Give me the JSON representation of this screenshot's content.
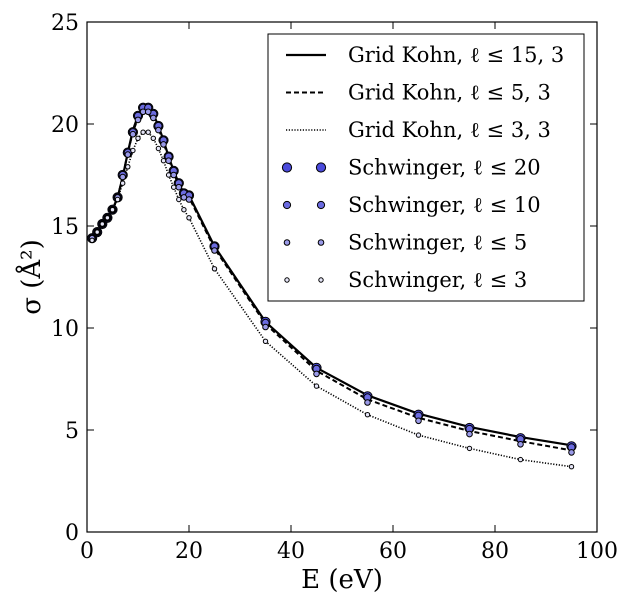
{
  "chart_data": {
    "type": "line",
    "xlabel": "E (eV)",
    "ylabel": "σ (Å²)",
    "xlim": [
      0,
      100
    ],
    "ylim": [
      0,
      25
    ],
    "xticks": [
      0,
      20,
      40,
      60,
      80,
      100
    ],
    "yticks": [
      0,
      5,
      10,
      15,
      20,
      25
    ],
    "grid": false,
    "legend_position": "top-right",
    "series": [
      {
        "name": "Grid Kohn, ℓ ≤ 15, 3",
        "style": "solid",
        "x": [
          1,
          2,
          3,
          4,
          5,
          6,
          7,
          8,
          9,
          10,
          11,
          12,
          13,
          14,
          15,
          16,
          17,
          18,
          19,
          20,
          25,
          35,
          45,
          55,
          65,
          75,
          85,
          95
        ],
        "y": [
          14.4,
          14.7,
          15.1,
          15.4,
          15.8,
          16.4,
          17.4,
          18.6,
          19.7,
          20.4,
          20.8,
          20.8,
          20.5,
          19.9,
          19.2,
          18.4,
          17.7,
          17.1,
          16.6,
          16.5,
          14.0,
          10.3,
          8.05,
          6.7,
          5.8,
          5.15,
          4.65,
          4.25
        ]
      },
      {
        "name": "Grid Kohn, ℓ ≤ 5, 3",
        "style": "dashed",
        "x": [
          1,
          2,
          3,
          4,
          5,
          6,
          7,
          8,
          9,
          10,
          11,
          12,
          13,
          14,
          15,
          16,
          17,
          18,
          19,
          20,
          25,
          35,
          45,
          55,
          65,
          75,
          85,
          95
        ],
        "y": [
          14.4,
          14.7,
          15.1,
          15.4,
          15.8,
          16.4,
          17.4,
          18.6,
          19.6,
          20.3,
          20.7,
          20.7,
          20.4,
          19.8,
          19.1,
          18.3,
          17.6,
          17.0,
          16.5,
          16.4,
          13.9,
          10.2,
          7.9,
          6.5,
          5.6,
          4.95,
          4.45,
          4.0
        ]
      },
      {
        "name": "Grid Kohn, ℓ ≤ 3, 3",
        "style": "dotted",
        "x": [
          1,
          2,
          3,
          4,
          5,
          6,
          7,
          8,
          9,
          10,
          11,
          12,
          13,
          14,
          15,
          16,
          17,
          18,
          19,
          20,
          25,
          35,
          45,
          55,
          65,
          75,
          85,
          95
        ],
        "y": [
          14.3,
          14.7,
          15.1,
          15.4,
          15.8,
          16.3,
          17.1,
          17.9,
          18.7,
          19.3,
          19.6,
          19.6,
          19.3,
          18.8,
          18.2,
          17.5,
          16.9,
          16.3,
          15.8,
          15.4,
          12.9,
          9.35,
          7.15,
          5.75,
          4.75,
          4.1,
          3.55,
          3.2
        ]
      },
      {
        "name": "Schwinger, ℓ ≤ 20",
        "style": "marker-large",
        "x": [
          1,
          2,
          3,
          4,
          5,
          6,
          7,
          8,
          9,
          10,
          11,
          12,
          13,
          14,
          15,
          16,
          17,
          18,
          19,
          20,
          25,
          35,
          45,
          55,
          65,
          75,
          85,
          95
        ],
        "y": [
          14.4,
          14.7,
          15.1,
          15.4,
          15.8,
          16.4,
          17.5,
          18.6,
          19.6,
          20.4,
          20.8,
          20.8,
          20.5,
          19.9,
          19.2,
          18.4,
          17.7,
          17.1,
          16.6,
          16.5,
          14.0,
          10.3,
          8.05,
          6.65,
          5.75,
          5.1,
          4.6,
          4.2
        ]
      },
      {
        "name": "Schwinger, ℓ ≤ 10",
        "style": "marker-medium",
        "x": [
          1,
          2,
          3,
          4,
          5,
          6,
          7,
          8,
          9,
          10,
          11,
          12,
          13,
          14,
          15,
          16,
          17,
          18,
          19,
          20,
          25,
          35,
          45,
          55,
          65,
          75,
          85,
          95
        ],
        "y": [
          14.4,
          14.7,
          15.1,
          15.4,
          15.8,
          16.4,
          17.5,
          18.6,
          19.6,
          20.4,
          20.8,
          20.8,
          20.5,
          19.9,
          19.2,
          18.4,
          17.7,
          17.1,
          16.6,
          16.5,
          14.0,
          10.25,
          8.0,
          6.6,
          5.7,
          5.05,
          4.55,
          4.15
        ]
      },
      {
        "name": "Schwinger, ℓ ≤ 5",
        "style": "marker-small",
        "x": [
          1,
          2,
          3,
          4,
          5,
          6,
          7,
          8,
          9,
          10,
          11,
          12,
          13,
          14,
          15,
          16,
          17,
          18,
          19,
          20,
          25,
          35,
          45,
          55,
          65,
          75,
          85,
          95
        ],
        "y": [
          14.4,
          14.7,
          15.1,
          15.4,
          15.8,
          16.4,
          17.4,
          18.5,
          19.5,
          20.2,
          20.6,
          20.6,
          20.3,
          19.7,
          19.0,
          18.2,
          17.5,
          16.9,
          16.4,
          16.3,
          13.8,
          10.05,
          7.75,
          6.35,
          5.45,
          4.8,
          4.3,
          3.9
        ]
      },
      {
        "name": "Schwinger, ℓ ≤ 3",
        "style": "marker-tiny",
        "x": [
          1,
          2,
          3,
          4,
          5,
          6,
          7,
          8,
          9,
          10,
          11,
          12,
          13,
          14,
          15,
          16,
          17,
          18,
          19,
          20,
          25,
          35,
          45,
          55,
          65,
          75,
          85,
          95
        ],
        "y": [
          14.3,
          14.7,
          15.1,
          15.4,
          15.8,
          16.3,
          17.1,
          17.9,
          18.7,
          19.3,
          19.6,
          19.6,
          19.3,
          18.8,
          18.2,
          17.5,
          16.9,
          16.3,
          15.8,
          15.4,
          12.9,
          9.35,
          7.15,
          5.75,
          4.75,
          4.1,
          3.55,
          3.2
        ]
      }
    ],
    "colors": {
      "marker_fill_large": "#4b4bdc",
      "marker_fill_medium": "#6b6be0",
      "marker_fill_small": "#9a9ae8",
      "marker_fill_tiny": "#e6e6f8",
      "line": "#000000"
    }
  }
}
